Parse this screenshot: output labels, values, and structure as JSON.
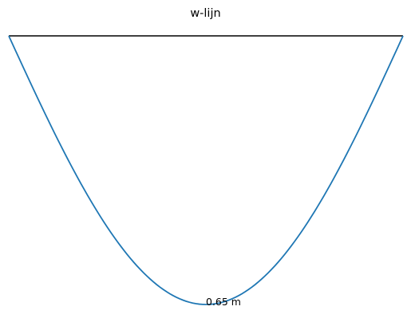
{
  "title": "w-lijn",
  "colors": {
    "beam": "#000000",
    "deflection_curve": "#1f77b4",
    "background": "#ffffff"
  },
  "deflection_label": "0.65 m",
  "diagram": {
    "type": "deflection-line",
    "beam_length_normalized": 1.0,
    "max_deflection_m": 0.65,
    "max_deflection_position": 0.5,
    "curve_shape": "simply-supported-uniform-load"
  }
}
